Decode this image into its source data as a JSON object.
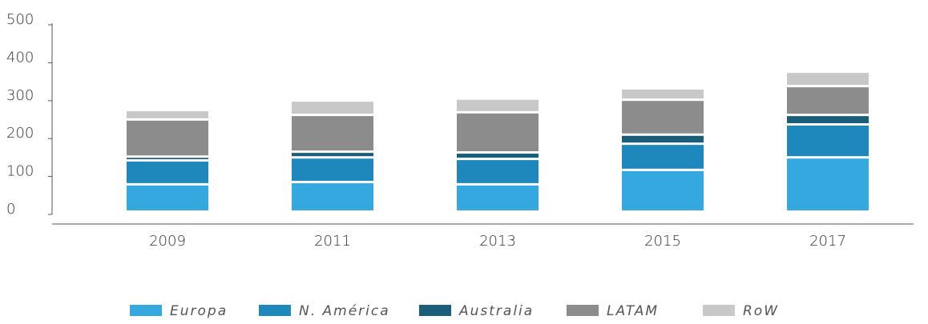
{
  "chart_data": {
    "type": "stacked_bar",
    "categories": [
      "2009",
      "2011",
      "2013",
      "2015",
      "2017"
    ],
    "series": [
      {
        "name": "Europa",
        "color": "#35a8e0",
        "values": [
          72,
          78,
          72,
          110,
          143
        ]
      },
      {
        "name": "N. América",
        "color": "#1e88bd",
        "values": [
          63,
          65,
          67,
          69,
          87
        ]
      },
      {
        "name": "Australia",
        "color": "#1a5e7a",
        "values": [
          10,
          15,
          17,
          24,
          25
        ]
      },
      {
        "name": "LATAM",
        "color": "#8c8c8c",
        "values": [
          98,
          97,
          106,
          92,
          76
        ]
      },
      {
        "name": "RoW",
        "color": "#c8c8c8",
        "values": [
          25,
          38,
          36,
          30,
          38
        ]
      }
    ],
    "ylim": [
      0,
      500
    ],
    "yticks": [
      0,
      100,
      200,
      300,
      400,
      500
    ],
    "legend": "bottom"
  }
}
